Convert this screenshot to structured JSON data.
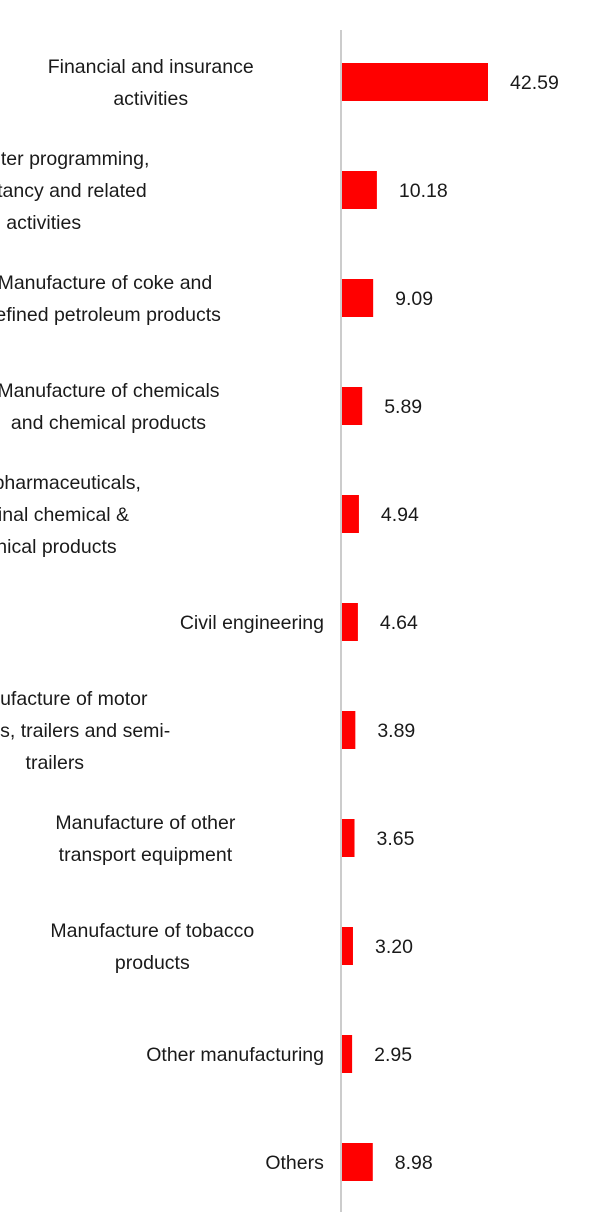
{
  "chart_data": {
    "type": "bar",
    "orientation": "horizontal",
    "categories": [
      [
        "Financial and insurance",
        "activities"
      ],
      [
        "Computer programming,",
        "consultancy and related",
        "activities"
      ],
      [
        "Manufacture of coke and",
        "refined petroleum products"
      ],
      [
        "Manufacture of chemicals",
        "and chemical products"
      ],
      [
        "Mfg of pharmaceuticals,",
        "medicinal chemical &",
        "botanical products"
      ],
      [
        "Civil engineering"
      ],
      [
        "Manufacture of motor",
        "vehicles, trailers and semi-",
        "trailers"
      ],
      [
        "Manufacture of other",
        "transport equipment"
      ],
      [
        "Manufacture of tobacco",
        "products"
      ],
      [
        "Other manufacturing"
      ],
      [
        "Others"
      ]
    ],
    "values": [
      42.59,
      10.18,
      9.09,
      5.89,
      4.94,
      4.64,
      3.89,
      3.65,
      3.2,
      2.95,
      8.98
    ],
    "value_labels": [
      "42.59",
      "10.18",
      "9.09",
      "5.89",
      "4.94",
      "4.64",
      "3.89",
      "3.65",
      "3.20",
      "2.95",
      "8.98"
    ],
    "xlim": [
      0,
      50
    ],
    "bar_color": "#ff0000",
    "axis_color": "#cccccc",
    "grid": false,
    "legend": "none"
  }
}
